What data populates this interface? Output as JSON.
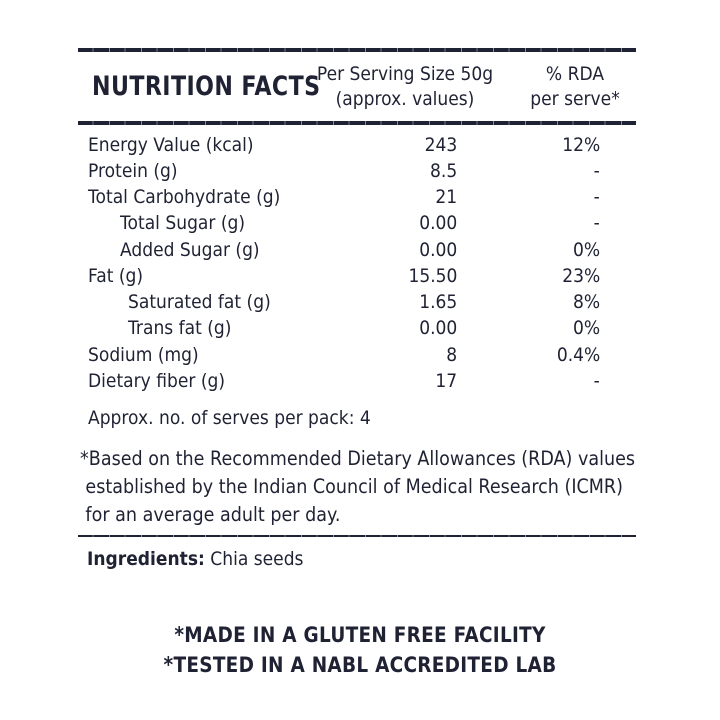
{
  "header": {
    "title": "NUTRITION FACTS",
    "serving_line1": "Per Serving Size 50g",
    "serving_line2": "(approx. values)",
    "rda_line1": "% RDA",
    "rda_line2": "per serve*"
  },
  "rows": [
    {
      "name": "Energy Value (kcal)",
      "value": "243",
      "rda": "12%"
    },
    {
      "name": "Protein (g)",
      "value": "8.5",
      "rda": "-"
    },
    {
      "name": "Total Carbohydrate (g)",
      "value": "21",
      "rda": "-"
    },
    {
      "name": "Total Sugar (g)",
      "value": "0.00",
      "rda": "-"
    },
    {
      "name": "Added Sugar (g)",
      "value": "0.00",
      "rda": "0%"
    },
    {
      "name": "Fat (g)",
      "value": "15.50",
      "rda": "23%"
    },
    {
      "name": "Saturated fat (g)",
      "value": "1.65",
      "rda": "8%"
    },
    {
      "name": "Trans fat (g)",
      "value": "0.00",
      "rda": "0%"
    },
    {
      "name": "Sodium (mg)",
      "value": "8",
      "rda": "0.4%"
    },
    {
      "name": "Dietary fiber (g)",
      "value": "17",
      "rda": "-"
    }
  ],
  "serves_per_pack": "Approx. no. of serves per pack: 4",
  "footnote": {
    "line1": "*Based on the Recommended Dietary Allowances (RDA) values",
    "line2": "established by the Indian Council of Medical Research (ICMR)",
    "line3": "for an average adult per day."
  },
  "ingredients": {
    "label": "Ingredients:",
    "value": " Chia seeds"
  },
  "claims": {
    "line1": "*MADE IN A GLUTEN FREE FACILITY",
    "line2": "*TESTED IN A NABL ACCREDITED LAB"
  }
}
